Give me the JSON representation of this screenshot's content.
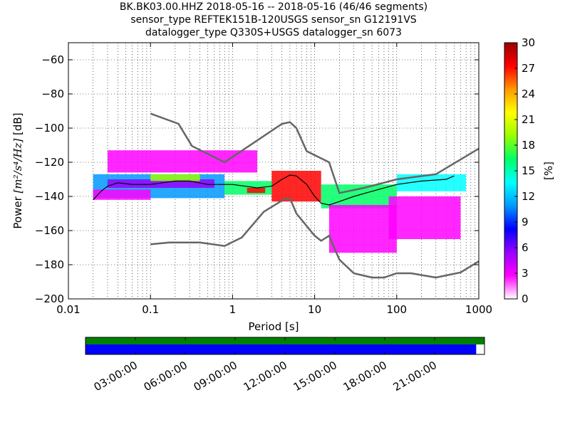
{
  "chart_data": {
    "type": "heatmap",
    "title": [
      "BK.BK03.00.HHZ   2018-05-16 -- 2018-05-16  (46/46 segments)",
      "sensor_type REFTEK151B-120USGS sensor_sn G12191VS",
      "datalogger_type Q330S+USGS datalogger_sn 6073"
    ],
    "xlabel": "Period [s]",
    "ylabel_prefix": "Power ",
    "ylabel_units": "[m²/s⁴/Hz]",
    "ylabel_suffix": " [dB]",
    "xscale": "log",
    "xlim": [
      0.01,
      1000
    ],
    "ylim": [
      -200,
      -50
    ],
    "x_ticks": [
      0.01,
      0.1,
      1,
      10,
      100,
      1000
    ],
    "x_tick_labels": [
      "0.01",
      "0.1",
      "1",
      "10",
      "100",
      "1000"
    ],
    "y_ticks": [
      -200,
      -180,
      -160,
      -140,
      -120,
      -100,
      -80,
      -60
    ],
    "y_tick_labels": [
      "−200",
      "−180",
      "−160",
      "−140",
      "−120",
      "−100",
      "−80",
      "−60"
    ],
    "grid": "dotted",
    "colorbar": {
      "label": "[%]",
      "range": [
        0,
        30
      ],
      "ticks": [
        0,
        3,
        6,
        9,
        12,
        15,
        18,
        21,
        24,
        27,
        30
      ],
      "tick_labels": [
        "0",
        "3",
        "6",
        "9",
        "12",
        "15",
        "18",
        "21",
        "24",
        "27",
        "30"
      ],
      "colormap": [
        "#ffffff",
        "#ff00ff",
        "#9900ff",
        "#0000ff",
        "#0099ff",
        "#00ffff",
        "#00ff66",
        "#99ff00",
        "#ffff00",
        "#ff9900",
        "#ff0000",
        "#990000"
      ]
    },
    "noise_models": [
      {
        "name": "high",
        "color": "#666666",
        "points": [
          [
            0.1,
            -91.5
          ],
          [
            0.22,
            -97.5
          ],
          [
            0.32,
            -110.5
          ],
          [
            0.8,
            -120
          ],
          [
            4.0,
            -97.5
          ],
          [
            5.0,
            -96.5
          ],
          [
            6.0,
            -100
          ],
          [
            8.0,
            -113.5
          ],
          [
            15.0,
            -120
          ],
          [
            20.0,
            -138
          ],
          [
            40.0,
            -135
          ],
          [
            100.0,
            -130
          ],
          [
            300.0,
            -127
          ],
          [
            1000.0,
            -112
          ]
        ]
      },
      {
        "name": "low",
        "color": "#666666",
        "points": [
          [
            0.1,
            -168
          ],
          [
            0.17,
            -167
          ],
          [
            0.4,
            -167
          ],
          [
            0.8,
            -169
          ],
          [
            1.3,
            -164
          ],
          [
            2.4,
            -149
          ],
          [
            4.3,
            -141.5
          ],
          [
            5.0,
            -141
          ],
          [
            6.0,
            -150
          ],
          [
            10.0,
            -163
          ],
          [
            12.0,
            -166
          ],
          [
            15.0,
            -163
          ],
          [
            20.0,
            -177
          ],
          [
            30.0,
            -185
          ],
          [
            50.0,
            -187.5
          ],
          [
            70.0,
            -187.5
          ],
          [
            100.0,
            -185
          ],
          [
            150.0,
            -185
          ],
          [
            300.0,
            -187.5
          ],
          [
            600.0,
            -184.5
          ],
          [
            1000.0,
            -178
          ]
        ]
      }
    ],
    "mode_curve": [
      [
        0.02,
        -142
      ],
      [
        0.025,
        -137
      ],
      [
        0.03,
        -134
      ],
      [
        0.04,
        -132
      ],
      [
        0.06,
        -133
      ],
      [
        0.1,
        -133
      ],
      [
        0.2,
        -131
      ],
      [
        0.3,
        -131
      ],
      [
        0.5,
        -133
      ],
      [
        1.0,
        -133
      ],
      [
        2.0,
        -135
      ],
      [
        3.0,
        -134
      ],
      [
        4.0,
        -130
      ],
      [
        5.0,
        -127.5
      ],
      [
        6.0,
        -128
      ],
      [
        8.0,
        -133
      ],
      [
        10.0,
        -140
      ],
      [
        12.0,
        -144
      ],
      [
        15.0,
        -145
      ],
      [
        20.0,
        -143
      ],
      [
        30.0,
        -140
      ],
      [
        50.0,
        -137
      ],
      [
        100.0,
        -133
      ],
      [
        200.0,
        -131
      ],
      [
        400.0,
        -130
      ],
      [
        500.0,
        -128
      ]
    ],
    "density": [
      {
        "x_min": 0.02,
        "x_max": 0.8,
        "y_min": -141,
        "y_max": -127,
        "percent": 10
      },
      {
        "x_min": 0.03,
        "x_max": 0.6,
        "y_min": -135,
        "y_max": -130,
        "percent": 5
      },
      {
        "x_min": 0.1,
        "x_max": 0.4,
        "y_min": -131,
        "y_max": -127,
        "percent": 20
      },
      {
        "x_min": 0.8,
        "x_max": 3.0,
        "y_min": -139,
        "y_max": -131,
        "percent": 15
      },
      {
        "x_min": 1.5,
        "x_max": 2.5,
        "y_min": -138,
        "y_max": -135,
        "percent": 28
      },
      {
        "x_min": 3.0,
        "x_max": 12.0,
        "y_min": -143,
        "y_max": -125,
        "percent": 27
      },
      {
        "x_min": 12.0,
        "x_max": 100.0,
        "y_min": -147,
        "y_max": -133,
        "percent": 15
      },
      {
        "x_min": 100.0,
        "x_max": 700.0,
        "y_min": -137,
        "y_max": -127,
        "percent": 13
      },
      {
        "x_min": 0.03,
        "x_max": 2.0,
        "y_min": -126,
        "y_max": -113,
        "percent": 2
      },
      {
        "x_min": 0.02,
        "x_max": 0.1,
        "y_min": -142,
        "y_max": -136,
        "percent": 2
      },
      {
        "x_min": 15.0,
        "x_max": 100.0,
        "y_min": -173,
        "y_max": -145,
        "percent": 2
      },
      {
        "x_min": 80.0,
        "x_max": 600.0,
        "y_min": -165,
        "y_max": -140,
        "percent": 2
      }
    ]
  },
  "timeline": {
    "labels": [
      "03:00:00",
      "06:00:00",
      "09:00:00",
      "12:00:00",
      "15:00:00",
      "18:00:00",
      "21:00:00"
    ],
    "label_hours": [
      3,
      6,
      9,
      12,
      15,
      18,
      21
    ],
    "span_hours": [
      0,
      24
    ],
    "bars": [
      {
        "name": "data-availability",
        "color": "#008000",
        "start_hours": 0,
        "end_hours": 24
      },
      {
        "name": "psd-segments",
        "color": "#0000ff",
        "start_hours": 0,
        "end_hours": 23.5
      }
    ]
  }
}
